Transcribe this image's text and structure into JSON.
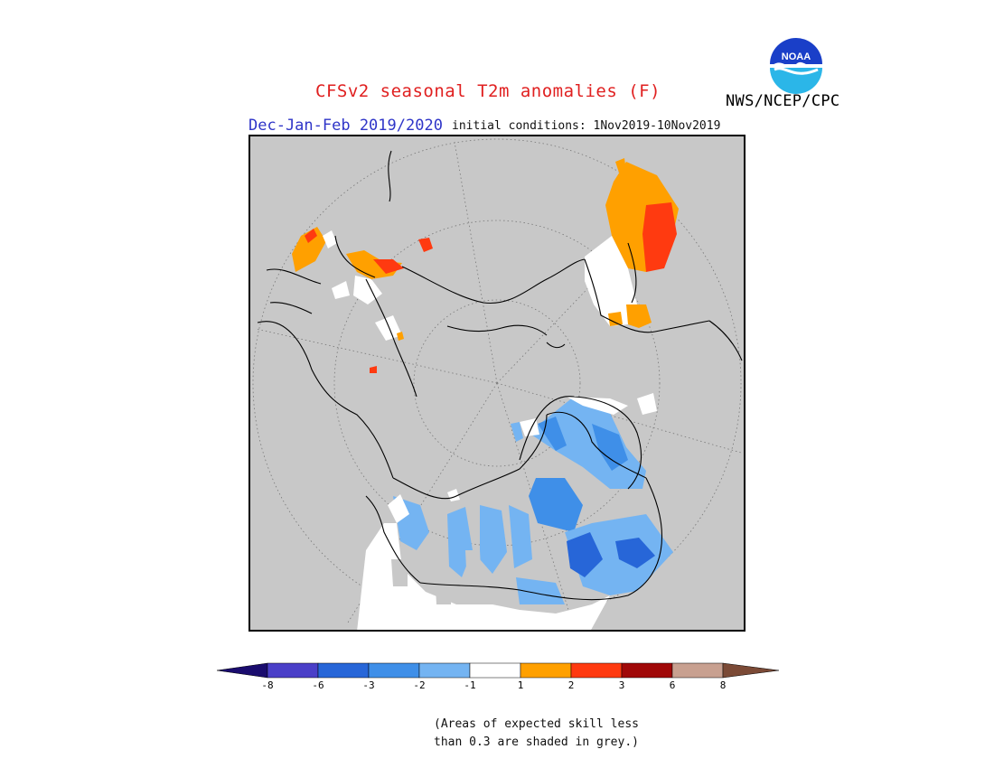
{
  "header": {
    "title": "CFSv2 seasonal T2m anomalies (F)",
    "season": "Dec-Jan-Feb 2019/2020",
    "initial_conditions": "initial conditions: 1Nov2019-10Nov2019",
    "agency": "NWS/NCEP/CPC",
    "logo_text": "NOAA"
  },
  "legend": {
    "levels": [
      "-8",
      "-6",
      "-3",
      "-2",
      "-1",
      "1",
      "2",
      "3",
      "6",
      "8"
    ],
    "colors": {
      "below_min": "#1a0c6e",
      "m8_m6": "#4a3fc8",
      "m6_m3": "#2766d8",
      "m3_m2": "#3f8fe8",
      "m2_m1": "#74b4f2",
      "m1_p1": "#ffffff",
      "p1_p2": "#ffa000",
      "p2_p3": "#ff3a10",
      "p3_p6": "#a00808",
      "p6_p8": "#c8a090",
      "above_max": "#7b4a36"
    }
  },
  "footnote": {
    "line1": "(Areas of expected skill less",
    "line2": "than 0.3 are shaded in grey.)"
  },
  "map": {
    "projection": "north-polar-stereographic",
    "background_color": "#c8c8c8",
    "skill_mask_color": "#c8c8c8",
    "coastline_color": "#000000"
  }
}
